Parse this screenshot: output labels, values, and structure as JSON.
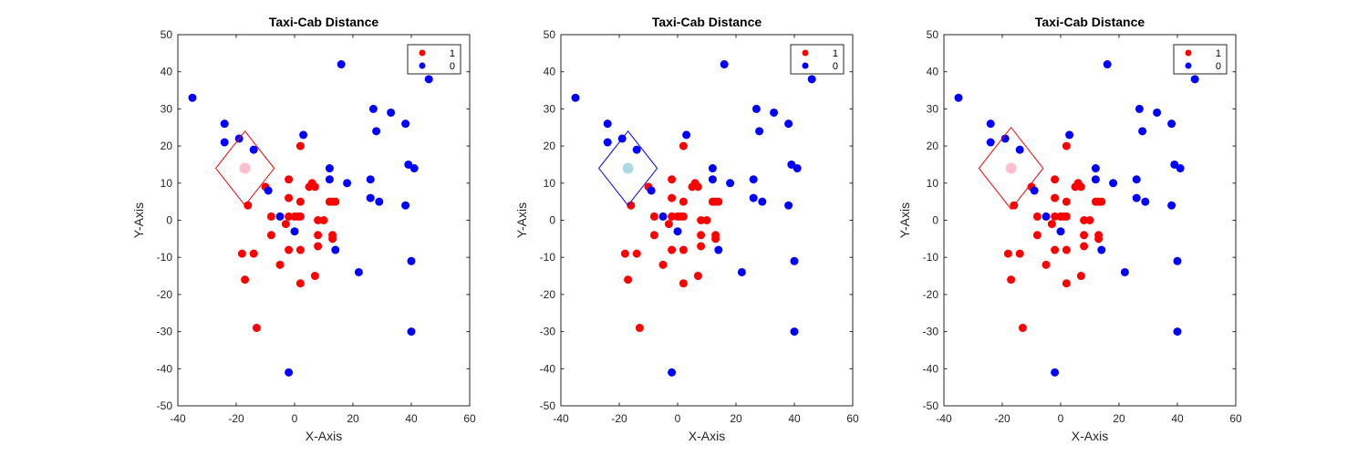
{
  "chart_data": [
    {
      "type": "scatter",
      "title": "Taxi-Cab Distance",
      "xlabel": "X-Axis",
      "ylabel": "Y-Axis",
      "xlim": [
        -40,
        60
      ],
      "ylim": [
        -50,
        50
      ],
      "xticks": [
        "-40",
        "-20",
        "0",
        "20",
        "40",
        "60"
      ],
      "yticks": [
        "-50",
        "-40",
        "-30",
        "-20",
        "-10",
        "0",
        "10",
        "20",
        "30",
        "40",
        "50"
      ],
      "legend": {
        "position": "top-right",
        "entries": [
          "1",
          "0"
        ]
      },
      "query_point": {
        "x": -17,
        "y": 14,
        "color": "#ffc0cb"
      },
      "diamond": {
        "center": [
          -17,
          14
        ],
        "radius": 10,
        "color": "#ff0000"
      },
      "series": [
        {
          "name": "1",
          "color": "#ff0000",
          "x": [
            2,
            6,
            7,
            -2,
            5,
            -18,
            -10,
            -16,
            -8,
            2,
            13,
            14,
            0,
            1,
            12,
            -8,
            -2,
            2,
            8,
            10,
            -3,
            -2,
            8,
            13,
            13,
            -14,
            2,
            -5,
            8,
            -2,
            7,
            -17,
            2,
            -13
          ],
          "y": [
            20,
            10,
            9,
            11,
            9,
            -9,
            9,
            4,
            1,
            5,
            5,
            5,
            1,
            1,
            5,
            -4,
            6,
            1,
            0,
            0,
            -1,
            1,
            -4,
            -5,
            -4,
            -9,
            -8,
            -12,
            -7,
            -8,
            -15,
            -16,
            -17,
            -29
          ]
        },
        {
          "name": "0",
          "color": "#0000ff",
          "x": [
            -35,
            16,
            46,
            -24,
            -24,
            -19,
            -14,
            3,
            27,
            33,
            38,
            28,
            12,
            18,
            26,
            12,
            39,
            41,
            26,
            29,
            38,
            -9,
            -5,
            0,
            14,
            22,
            40,
            40,
            -2
          ],
          "y": [
            33,
            42,
            38,
            26,
            21,
            22,
            19,
            23,
            30,
            29,
            26,
            24,
            14,
            10,
            11,
            11,
            15,
            14,
            6,
            5,
            4,
            8,
            1,
            -3,
            -8,
            -14,
            -11,
            -30,
            -41
          ]
        }
      ]
    },
    {
      "type": "scatter",
      "title": "Taxi-Cab Distance",
      "xlabel": "X-Axis",
      "ylabel": "Y-Axis",
      "xlim": [
        -40,
        60
      ],
      "ylim": [
        -50,
        50
      ],
      "xticks": [
        "-40",
        "-20",
        "0",
        "20",
        "40",
        "60"
      ],
      "yticks": [
        "-50",
        "-40",
        "-30",
        "-20",
        "-10",
        "0",
        "10",
        "20",
        "30",
        "40",
        "50"
      ],
      "legend": {
        "position": "top-right",
        "entries": [
          "1",
          "0"
        ]
      },
      "query_point": {
        "x": -17,
        "y": 14,
        "color": "#add8e6"
      },
      "diamond": {
        "center": [
          -17,
          14
        ],
        "radius": 10,
        "color": "#0000ff"
      },
      "series": [
        {
          "name": "1",
          "color": "#ff0000",
          "x": [
            2,
            6,
            7,
            -2,
            5,
            -18,
            -10,
            -16,
            -8,
            2,
            13,
            14,
            0,
            1,
            12,
            -8,
            -2,
            2,
            8,
            10,
            -3,
            -2,
            8,
            13,
            13,
            -14,
            2,
            -5,
            8,
            -2,
            7,
            -17,
            2,
            -13
          ],
          "y": [
            20,
            10,
            9,
            11,
            9,
            -9,
            9,
            4,
            1,
            5,
            5,
            5,
            1,
            1,
            5,
            -4,
            6,
            1,
            0,
            0,
            -1,
            1,
            -4,
            -5,
            -4,
            -9,
            -8,
            -12,
            -7,
            -8,
            -15,
            -16,
            -17,
            -29
          ]
        },
        {
          "name": "0",
          "color": "#0000ff",
          "x": [
            -35,
            16,
            46,
            -24,
            -24,
            -19,
            -14,
            3,
            27,
            33,
            38,
            28,
            12,
            18,
            26,
            12,
            39,
            41,
            26,
            29,
            38,
            -9,
            -5,
            0,
            14,
            22,
            40,
            40,
            -2
          ],
          "y": [
            33,
            42,
            38,
            26,
            21,
            22,
            19,
            23,
            30,
            29,
            26,
            24,
            14,
            10,
            11,
            11,
            15,
            14,
            6,
            5,
            4,
            8,
            1,
            -3,
            -8,
            -14,
            -11,
            -30,
            -41
          ]
        }
      ]
    },
    {
      "type": "scatter",
      "title": "Taxi-Cab Distance",
      "xlabel": "X-Axis",
      "ylabel": "Y-Axis",
      "xlim": [
        -40,
        60
      ],
      "ylim": [
        -50,
        50
      ],
      "xticks": [
        "-40",
        "-20",
        "0",
        "20",
        "40",
        "60"
      ],
      "yticks": [
        "-50",
        "-40",
        "-30",
        "-20",
        "-10",
        "0",
        "10",
        "20",
        "30",
        "40",
        "50"
      ],
      "legend": {
        "position": "top-right",
        "entries": [
          "1",
          "0"
        ]
      },
      "query_point": {
        "x": -17,
        "y": 14,
        "color": "#ffc0cb"
      },
      "diamond": {
        "center": [
          -17,
          14
        ],
        "radius": 11,
        "color": "#ff0000"
      },
      "series": [
        {
          "name": "1",
          "color": "#ff0000",
          "x": [
            2,
            6,
            7,
            -2,
            5,
            -18,
            -10,
            -16,
            -8,
            2,
            13,
            14,
            0,
            1,
            12,
            -8,
            -2,
            2,
            8,
            10,
            -3,
            -2,
            8,
            13,
            13,
            -14,
            2,
            -5,
            8,
            -2,
            7,
            -17,
            2,
            -13
          ],
          "y": [
            20,
            10,
            9,
            11,
            9,
            -9,
            9,
            4,
            1,
            5,
            5,
            5,
            1,
            1,
            5,
            -4,
            6,
            1,
            0,
            0,
            -1,
            1,
            -4,
            -5,
            -4,
            -9,
            -8,
            -12,
            -7,
            -8,
            -15,
            -16,
            -17,
            -29
          ]
        },
        {
          "name": "0",
          "color": "#0000ff",
          "x": [
            -35,
            16,
            46,
            -24,
            -24,
            -19,
            -14,
            3,
            27,
            33,
            38,
            28,
            12,
            18,
            26,
            12,
            39,
            41,
            26,
            29,
            38,
            -9,
            -5,
            0,
            14,
            22,
            40,
            40,
            -2
          ],
          "y": [
            33,
            42,
            38,
            26,
            21,
            22,
            19,
            23,
            30,
            29,
            26,
            24,
            14,
            10,
            11,
            11,
            15,
            14,
            6,
            5,
            4,
            8,
            1,
            -3,
            -8,
            -14,
            -11,
            -30,
            -41
          ]
        }
      ]
    }
  ]
}
